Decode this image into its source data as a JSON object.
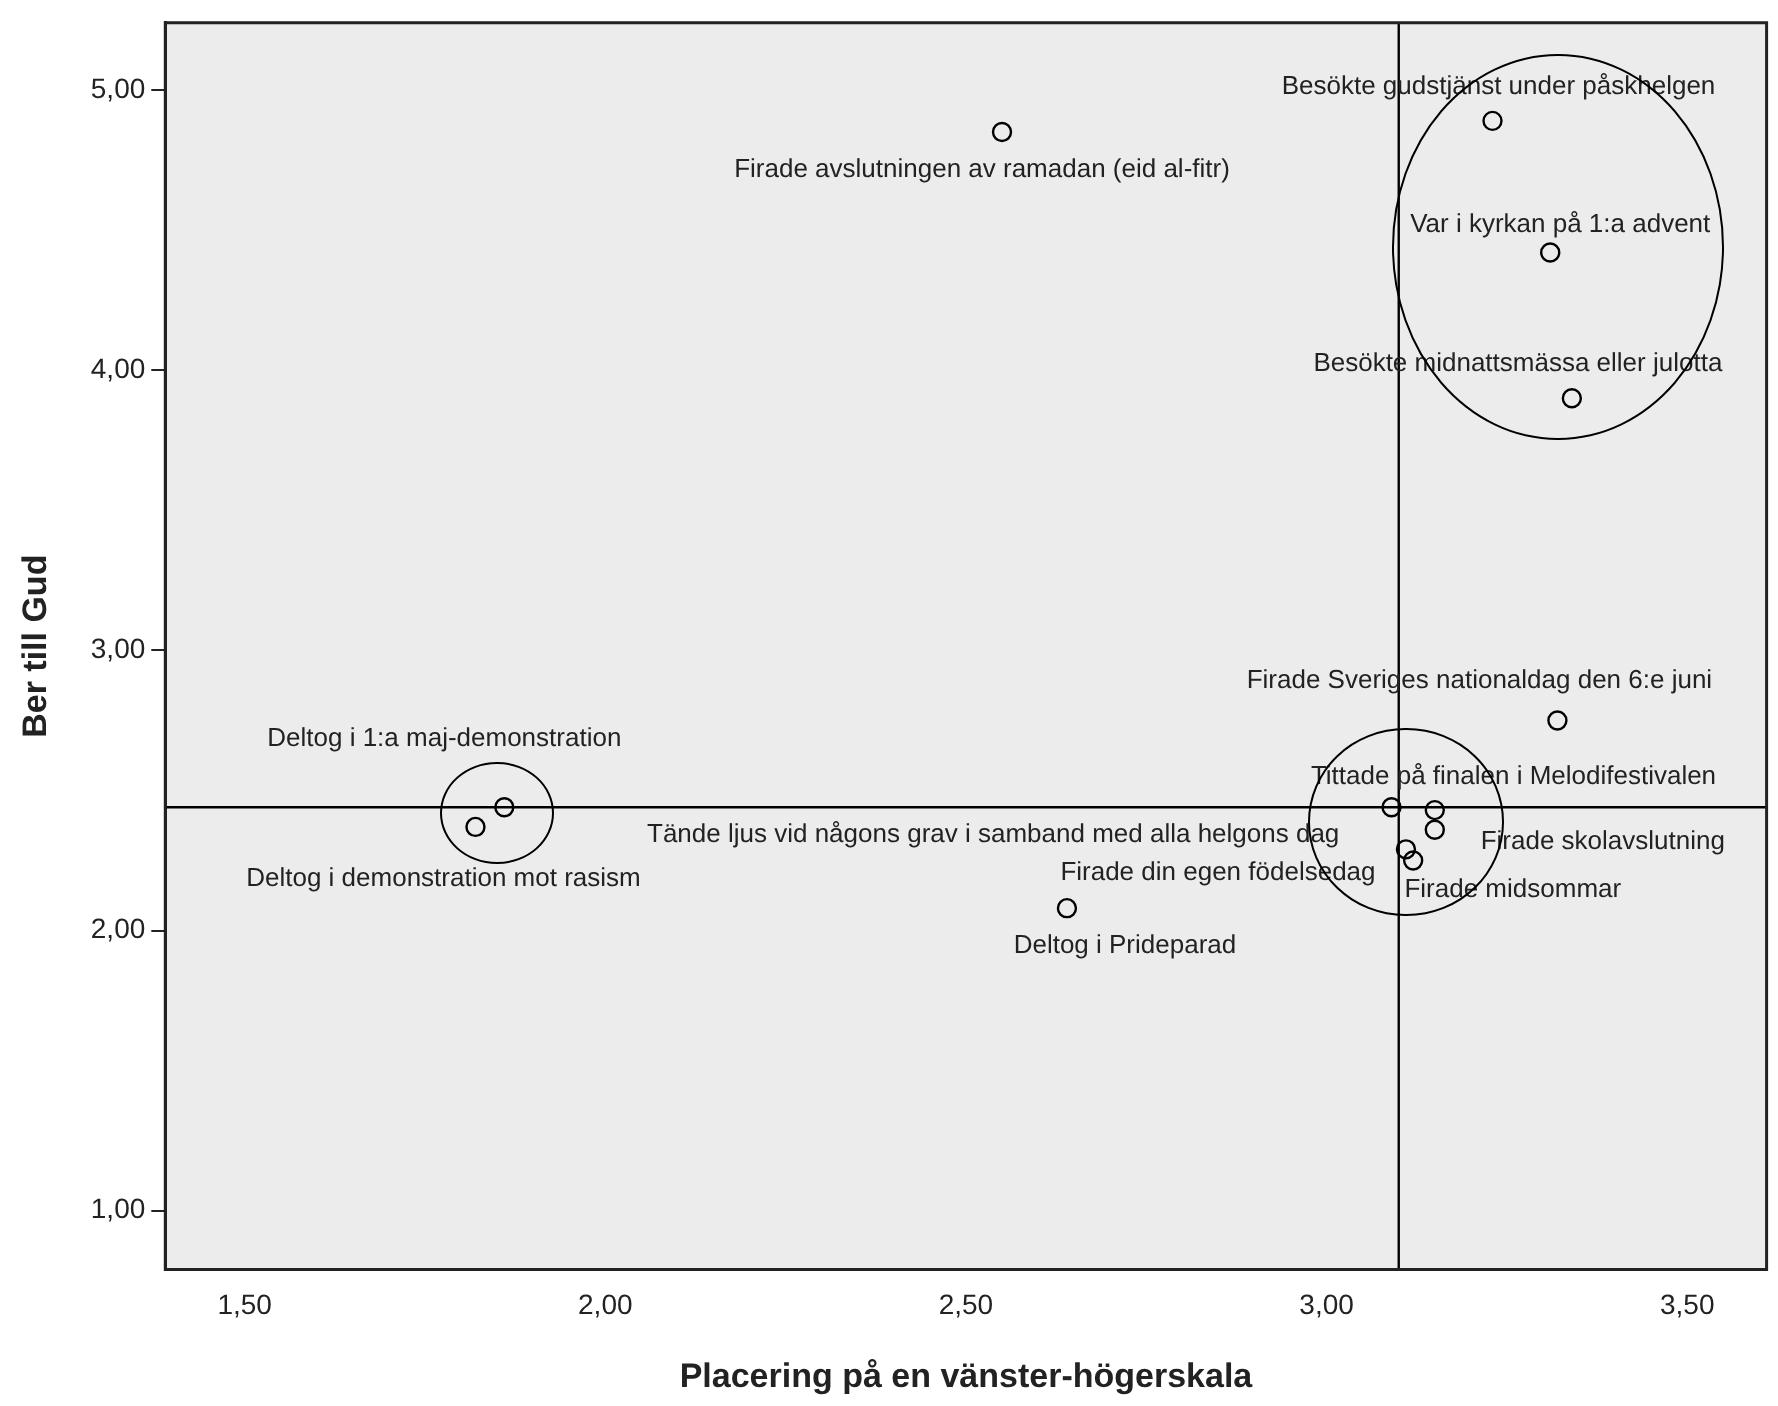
{
  "chart_data": {
    "type": "scatter",
    "xlabel": "Placering på en vänster-högerskala",
    "ylabel": "Ber till Gud",
    "x": [
      2.55,
      3.23,
      3.31,
      3.34,
      3.32,
      3.09,
      3.15,
      3.15,
      3.11,
      3.12,
      1.86,
      1.82,
      2.64
    ],
    "series": [
      {
        "color": "#000000",
        "values": [
          4.85,
          4.89,
          4.42,
          3.9,
          2.75,
          2.44,
          2.43,
          2.36,
          2.29,
          2.25,
          2.44,
          2.37,
          2.08
        ]
      }
    ],
    "xlim": [
      1.39,
      3.61
    ],
    "ylim": [
      0.79,
      5.24
    ],
    "xticks": [
      {
        "value": 1.5,
        "label": "1,50"
      },
      {
        "value": 2,
        "label": "2,00"
      },
      {
        "value": 2.5,
        "label": "2,50"
      },
      {
        "value": 3,
        "label": "3,00"
      },
      {
        "value": 3.5,
        "label": "3,50"
      }
    ],
    "yticks": [
      {
        "value": 1,
        "label": "1,00"
      },
      {
        "value": 2,
        "label": "2,00"
      },
      {
        "value": 3,
        "label": "3,00"
      },
      {
        "value": 4,
        "label": "4,00"
      },
      {
        "value": 5,
        "label": "5,00"
      }
    ],
    "grid": false,
    "legend": false,
    "marker": "circle",
    "ref_lines": [
      {
        "axis": "x",
        "value": 3.1,
        "color": "#000000"
      },
      {
        "axis": "y",
        "value": 2.44,
        "color": "#000000"
      }
    ],
    "annotations": [
      {
        "text": "Firade avslutningen av ramadan (eid al-fitr)",
        "x": 2.55,
        "y": 4.85
      },
      {
        "text": "Besökte gudstjänst under påskhelgen",
        "x": 3.23,
        "y": 4.89
      },
      {
        "text": "Var i kyrkan på 1:a advent",
        "x": 3.31,
        "y": 4.42
      },
      {
        "text": "Besökte midnattsmässa eller julotta",
        "x": 3.34,
        "y": 3.9
      },
      {
        "text": "Firade Sveriges nationaldag den 6:e juni",
        "x": 3.32,
        "y": 2.75
      },
      {
        "text": "Tittade på finalen i Melodifestivalen",
        "x": 3.09,
        "y": 2.44
      },
      {
        "text": "Firade skolavslutning",
        "x": 3.15,
        "y": 2.43
      },
      {
        "text": "Firade midsommar",
        "x": 3.15,
        "y": 2.36
      },
      {
        "text": "Firade din egen födelsedag",
        "x": 3.11,
        "y": 2.29
      },
      {
        "text": "Tände ljus vid någons grav i samband med alla helgons dag",
        "x": 3.12,
        "y": 2.25
      },
      {
        "text": "Deltog i 1:a maj-demonstration",
        "x": 1.86,
        "y": 2.44
      },
      {
        "text": "Deltog i demonstration mot rasism",
        "x": 1.82,
        "y": 2.37
      },
      {
        "text": "Deltog i Prideparad",
        "x": 2.64,
        "y": 2.08
      }
    ]
  }
}
